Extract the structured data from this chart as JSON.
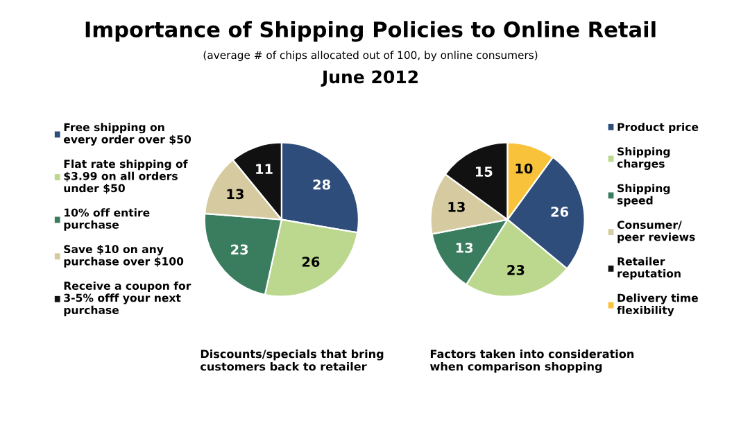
{
  "chart_data": [
    {
      "type": "pie",
      "title": "Importance of Shipping Policies to Online Retail",
      "subtitle": "(average # of chips allocated out of 100, by online consumers)",
      "annotations": [
        "June 2012",
        "Discounts/specials that bring\ncustomers back to retailer"
      ],
      "categories": [
        "Free shipping on\nevery order over $50",
        "Flat rate shipping of\n$3.99 on all orders\nunder $50",
        "10% off entire\npurchase",
        "Save $10 on any\npurchase over $100",
        "Receive a coupon for\n3-5% offf your next\npurchase"
      ],
      "values": [
        28,
        26,
        23,
        13,
        11
      ],
      "colors": [
        "#2e4d7b",
        "#bcd88e",
        "#3a7d5e",
        "#d6cba0",
        "#111111"
      ],
      "data_labels": true,
      "legend": "left"
    },
    {
      "type": "pie",
      "annotations": [
        "Factors taken into consideration\nwhen comparison shopping"
      ],
      "categories": [
        "Product price",
        "Shipping\ncharges",
        "Shipping\nspeed",
        "Consumer/\npeer reviews",
        "Retailer\nreputation",
        "Delivery time\nflexibility"
      ],
      "values": [
        26,
        23,
        13,
        13,
        15,
        10
      ],
      "colors": [
        "#2e4d7b",
        "#bcd88e",
        "#3a7d5e",
        "#d6cba0",
        "#111111",
        "#f8c23a"
      ],
      "data_labels": true,
      "legend": "right"
    }
  ]
}
